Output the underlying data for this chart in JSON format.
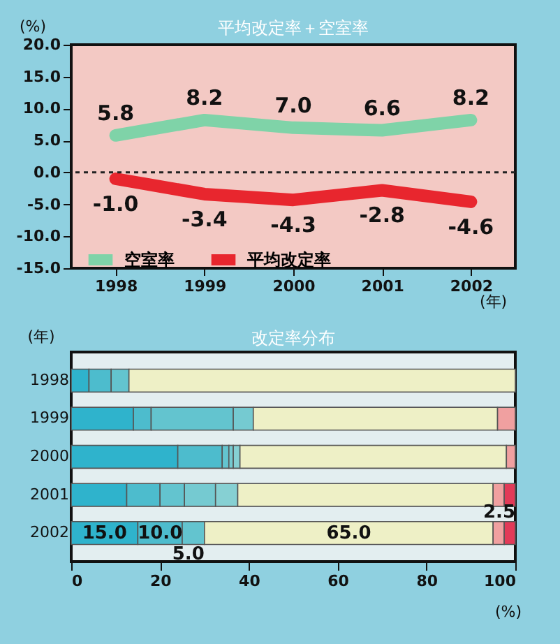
{
  "chart_data": [
    {
      "type": "line",
      "title": "平均改定率＋空室率",
      "xlabel": "(年)",
      "ylabel": "(%)",
      "categories": [
        "1998",
        "1999",
        "2000",
        "2001",
        "2002"
      ],
      "series": [
        {
          "name": "空室率",
          "color": "#7fd3a8",
          "values": [
            5.8,
            8.2,
            7.0,
            6.6,
            8.2
          ],
          "value_labels": [
            "5.8",
            "8.2",
            "7.0",
            "6.6",
            "8.2"
          ]
        },
        {
          "name": "平均改定率",
          "color": "#e8262e",
          "values": [
            -1.0,
            -3.4,
            -4.3,
            -2.8,
            -4.6
          ],
          "value_labels": [
            "-1.0",
            "-3.4",
            "-4.3",
            "-2.8",
            "-4.6"
          ]
        }
      ],
      "ylim": [
        -15,
        20
      ],
      "yticks": [
        {
          "value": 20,
          "label": "20.0"
        },
        {
          "value": 15,
          "label": "15.0"
        },
        {
          "value": 10,
          "label": "10.0"
        },
        {
          "value": 5,
          "label": "5.0"
        },
        {
          "value": 0,
          "label": "0.0"
        },
        {
          "value": -5,
          "label": "-5.0"
        },
        {
          "value": -10,
          "label": "-10.0"
        },
        {
          "value": -15,
          "label": "-15.0"
        }
      ],
      "ref_lines": [
        {
          "axis": "y",
          "value": 0,
          "color": "#222222",
          "line_style": "dotted"
        }
      ],
      "legend": "bottom left",
      "grid": false
    },
    {
      "type": "bar",
      "title": "改定率分布",
      "orientation": "horizontal",
      "stacked": true,
      "xlabel": "(%)",
      "ylabel": "(年)",
      "categories": [
        "1998",
        "1999",
        "2000",
        "2001",
        "2002"
      ],
      "series": [
        {
          "color": "#2fb3cc",
          "values": [
            4,
            14,
            24,
            12.5,
            15
          ],
          "value_labels": [
            null,
            null,
            null,
            null,
            "15.0"
          ]
        },
        {
          "color": "#4dbccd",
          "values": [
            5,
            4,
            10,
            7.5,
            10
          ],
          "value_labels": [
            null,
            null,
            null,
            null,
            "10.0"
          ]
        },
        {
          "color": "#63c4cf",
          "values": [
            4,
            18.5,
            1.5,
            5.5,
            5
          ],
          "value_labels": [
            null,
            null,
            null,
            null,
            "5.0"
          ]
        },
        {
          "color": "#75cad1",
          "values": [
            null,
            4.5,
            1,
            7,
            null
          ]
        },
        {
          "color": "#86d0d3",
          "values": [
            null,
            null,
            1.5,
            5,
            null
          ]
        },
        {
          "color": "#eef0c6",
          "values": [
            87,
            55,
            60,
            57.5,
            65
          ],
          "value_labels": [
            null,
            null,
            null,
            null,
            "65.0"
          ]
        },
        {
          "color": "#f0a0a0",
          "values": [
            null,
            4,
            2,
            2.5,
            2.5
          ]
        },
        {
          "color": "#e23a58",
          "values": [
            null,
            null,
            null,
            2.5,
            2.5
          ],
          "value_labels": [
            null,
            null,
            null,
            null,
            "2.5"
          ]
        }
      ],
      "xlim": [
        0,
        100
      ],
      "xticks": [
        0,
        20,
        40,
        60,
        80,
        100
      ],
      "grid": false
    }
  ]
}
